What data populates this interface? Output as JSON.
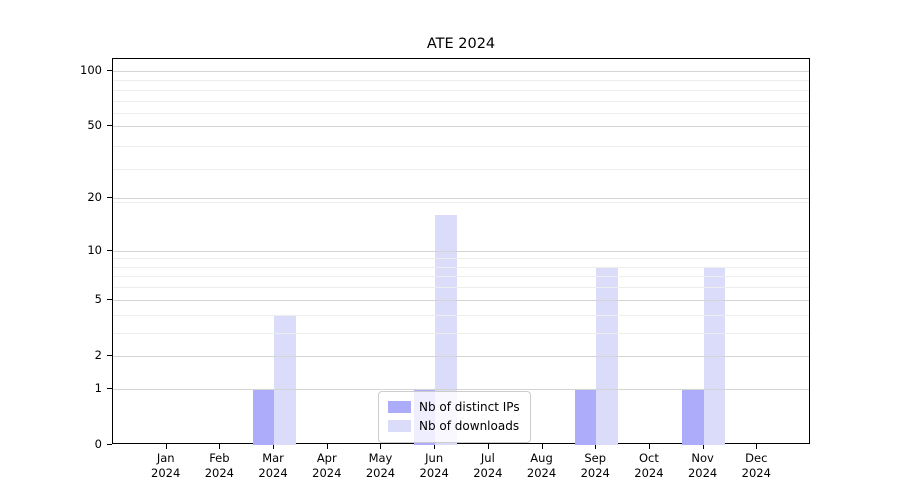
{
  "chart_data": {
    "type": "bar",
    "title": "ATE 2024",
    "categories": [
      "Jan",
      "Feb",
      "Mar",
      "Apr",
      "May",
      "Jun",
      "Jul",
      "Aug",
      "Sep",
      "Oct",
      "Nov",
      "Dec"
    ],
    "x_tick_year": "2024",
    "series": [
      {
        "name": "Nb of distinct IPs",
        "color": "#acacfa",
        "values": [
          0,
          0,
          1,
          0,
          0,
          1,
          0,
          0,
          1,
          0,
          1,
          0
        ]
      },
      {
        "name": "Nb of downloads",
        "color": "#dbdbfa",
        "values": [
          0,
          0,
          4,
          0,
          0,
          16,
          0,
          0,
          8,
          0,
          8,
          0
        ]
      }
    ],
    "xlabel": "",
    "ylabel": "",
    "yscale": "log1p",
    "ylim": [
      0,
      116
    ],
    "yticks": [
      0,
      1,
      2,
      5,
      10,
      20,
      50,
      100
    ],
    "minor_gridline_values": [
      3,
      4,
      6,
      7,
      8,
      9,
      19,
      29,
      39,
      59,
      69,
      79,
      89
    ],
    "grid": true,
    "legend_position": "lower center, inside plot",
    "colors": {
      "major_grid": "#d4d4d4",
      "minor_grid": "#ededed",
      "axis": "#000000",
      "background": "#ffffff"
    }
  }
}
